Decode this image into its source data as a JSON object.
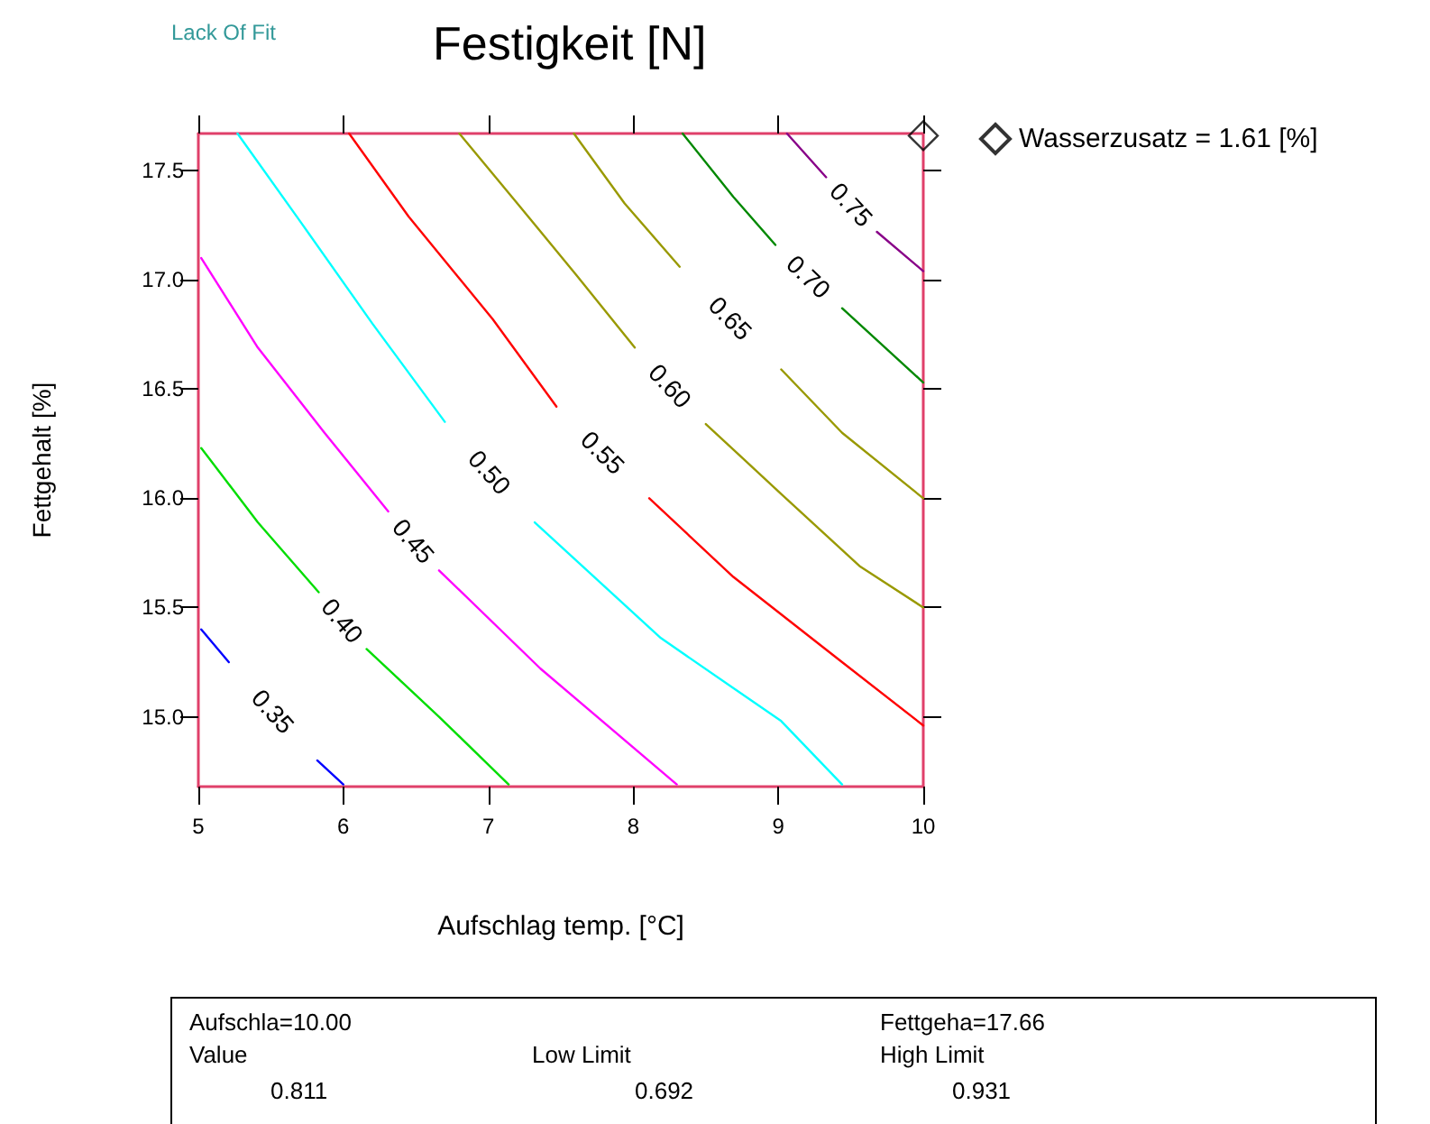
{
  "chart_data": {
    "type": "line",
    "title": "Festigkeit [N]",
    "xlabel": "Aufschlag temp. [°C]",
    "ylabel": "Fettgehalt [%]",
    "xlim": [
      5,
      10
    ],
    "ylim": [
      14.68,
      17.67
    ],
    "xticks": [
      5,
      6,
      7,
      8,
      9,
      10
    ],
    "yticks": [
      {
        "value": 15,
        "label": "15.0"
      },
      {
        "value": 15.5,
        "label": "15.5"
      },
      {
        "value": 16,
        "label": "16.0"
      },
      {
        "value": 16.5,
        "label": "16.5"
      },
      {
        "value": 17,
        "label": "17.0"
      },
      {
        "value": 17.5,
        "label": "17.5"
      }
    ],
    "grid": false,
    "legend": "top right",
    "marker": "none",
    "line_style": "solid",
    "annotations": [
      "Lack Of Fit",
      "Aufschla=10.00",
      "Fettgeha=17.66",
      "Value",
      "Low Limit",
      "High Limit",
      "0.811",
      "0.692",
      "0.931"
    ],
    "series": [
      {
        "name": "0.35",
        "color": "#0000ff",
        "x": [
          5.02,
          5.21,
          null,
          5.82,
          6.0
        ],
        "values": [
          15.4,
          15.25,
          null,
          14.8,
          14.69
        ]
      },
      {
        "name": "0.40",
        "color": "#00dd00",
        "x": [
          5.02,
          5.41,
          5.83,
          null,
          6.16,
          6.66,
          7.14
        ],
        "values": [
          16.23,
          15.89,
          15.57,
          null,
          15.31,
          15.0,
          14.69
        ]
      },
      {
        "name": "0.45",
        "color": "#ff00ff",
        "x": [
          5.02,
          5.41,
          5.87,
          6.31,
          null,
          6.66,
          7.36,
          8.3
        ],
        "values": [
          17.1,
          16.69,
          16.3,
          15.94,
          null,
          15.67,
          15.22,
          14.69
        ]
      },
      {
        "name": "0.50",
        "color": "#00ffff",
        "x": [
          5.27,
          5.7,
          6.2,
          6.7,
          null,
          7.32,
          8.19,
          9.02,
          9.44
        ],
        "values": [
          17.67,
          17.27,
          16.8,
          16.35,
          null,
          15.89,
          15.36,
          14.98,
          14.69
        ]
      },
      {
        "name": "0.55",
        "color": "#ff0000",
        "x": [
          6.04,
          6.45,
          7.03,
          7.47,
          null,
          8.11,
          8.69,
          9.44,
          10.0
        ],
        "values": [
          17.67,
          17.29,
          16.82,
          16.42,
          null,
          16.0,
          15.64,
          15.25,
          14.96
        ]
      },
      {
        "name": "0.60",
        "color": "#999900",
        "x": [
          6.8,
          7.2,
          7.61,
          8.01,
          null,
          8.5,
          9.02,
          9.56,
          10.0
        ],
        "values": [
          17.67,
          17.35,
          17.02,
          16.69,
          null,
          16.34,
          16.02,
          15.69,
          15.5
        ]
      },
      {
        "name": "0.65",
        "color": "#999900",
        "x": [
          7.59,
          7.94,
          8.32,
          null,
          9.02,
          9.44,
          10.0
        ],
        "values": [
          17.67,
          17.35,
          17.06,
          null,
          16.59,
          16.3,
          16.0
        ]
      },
      {
        "name": "0.70",
        "color": "#008800",
        "x": [
          8.34,
          8.69,
          8.98,
          null,
          9.44,
          10.0
        ],
        "values": [
          17.67,
          17.38,
          17.16,
          null,
          16.87,
          16.53
        ]
      },
      {
        "name": "0.75",
        "color": "#880088",
        "x": [
          9.06,
          9.33,
          null,
          9.68,
          10.0
        ],
        "values": [
          17.67,
          17.47,
          null,
          17.22,
          17.04
        ]
      },
      {
        "name": "Wasserzusatz = 1.61 [%]",
        "type": "scatter",
        "marker": "diamond",
        "color": "#000000",
        "x": [
          10.0
        ],
        "values": [
          17.66
        ]
      }
    ]
  }
}
